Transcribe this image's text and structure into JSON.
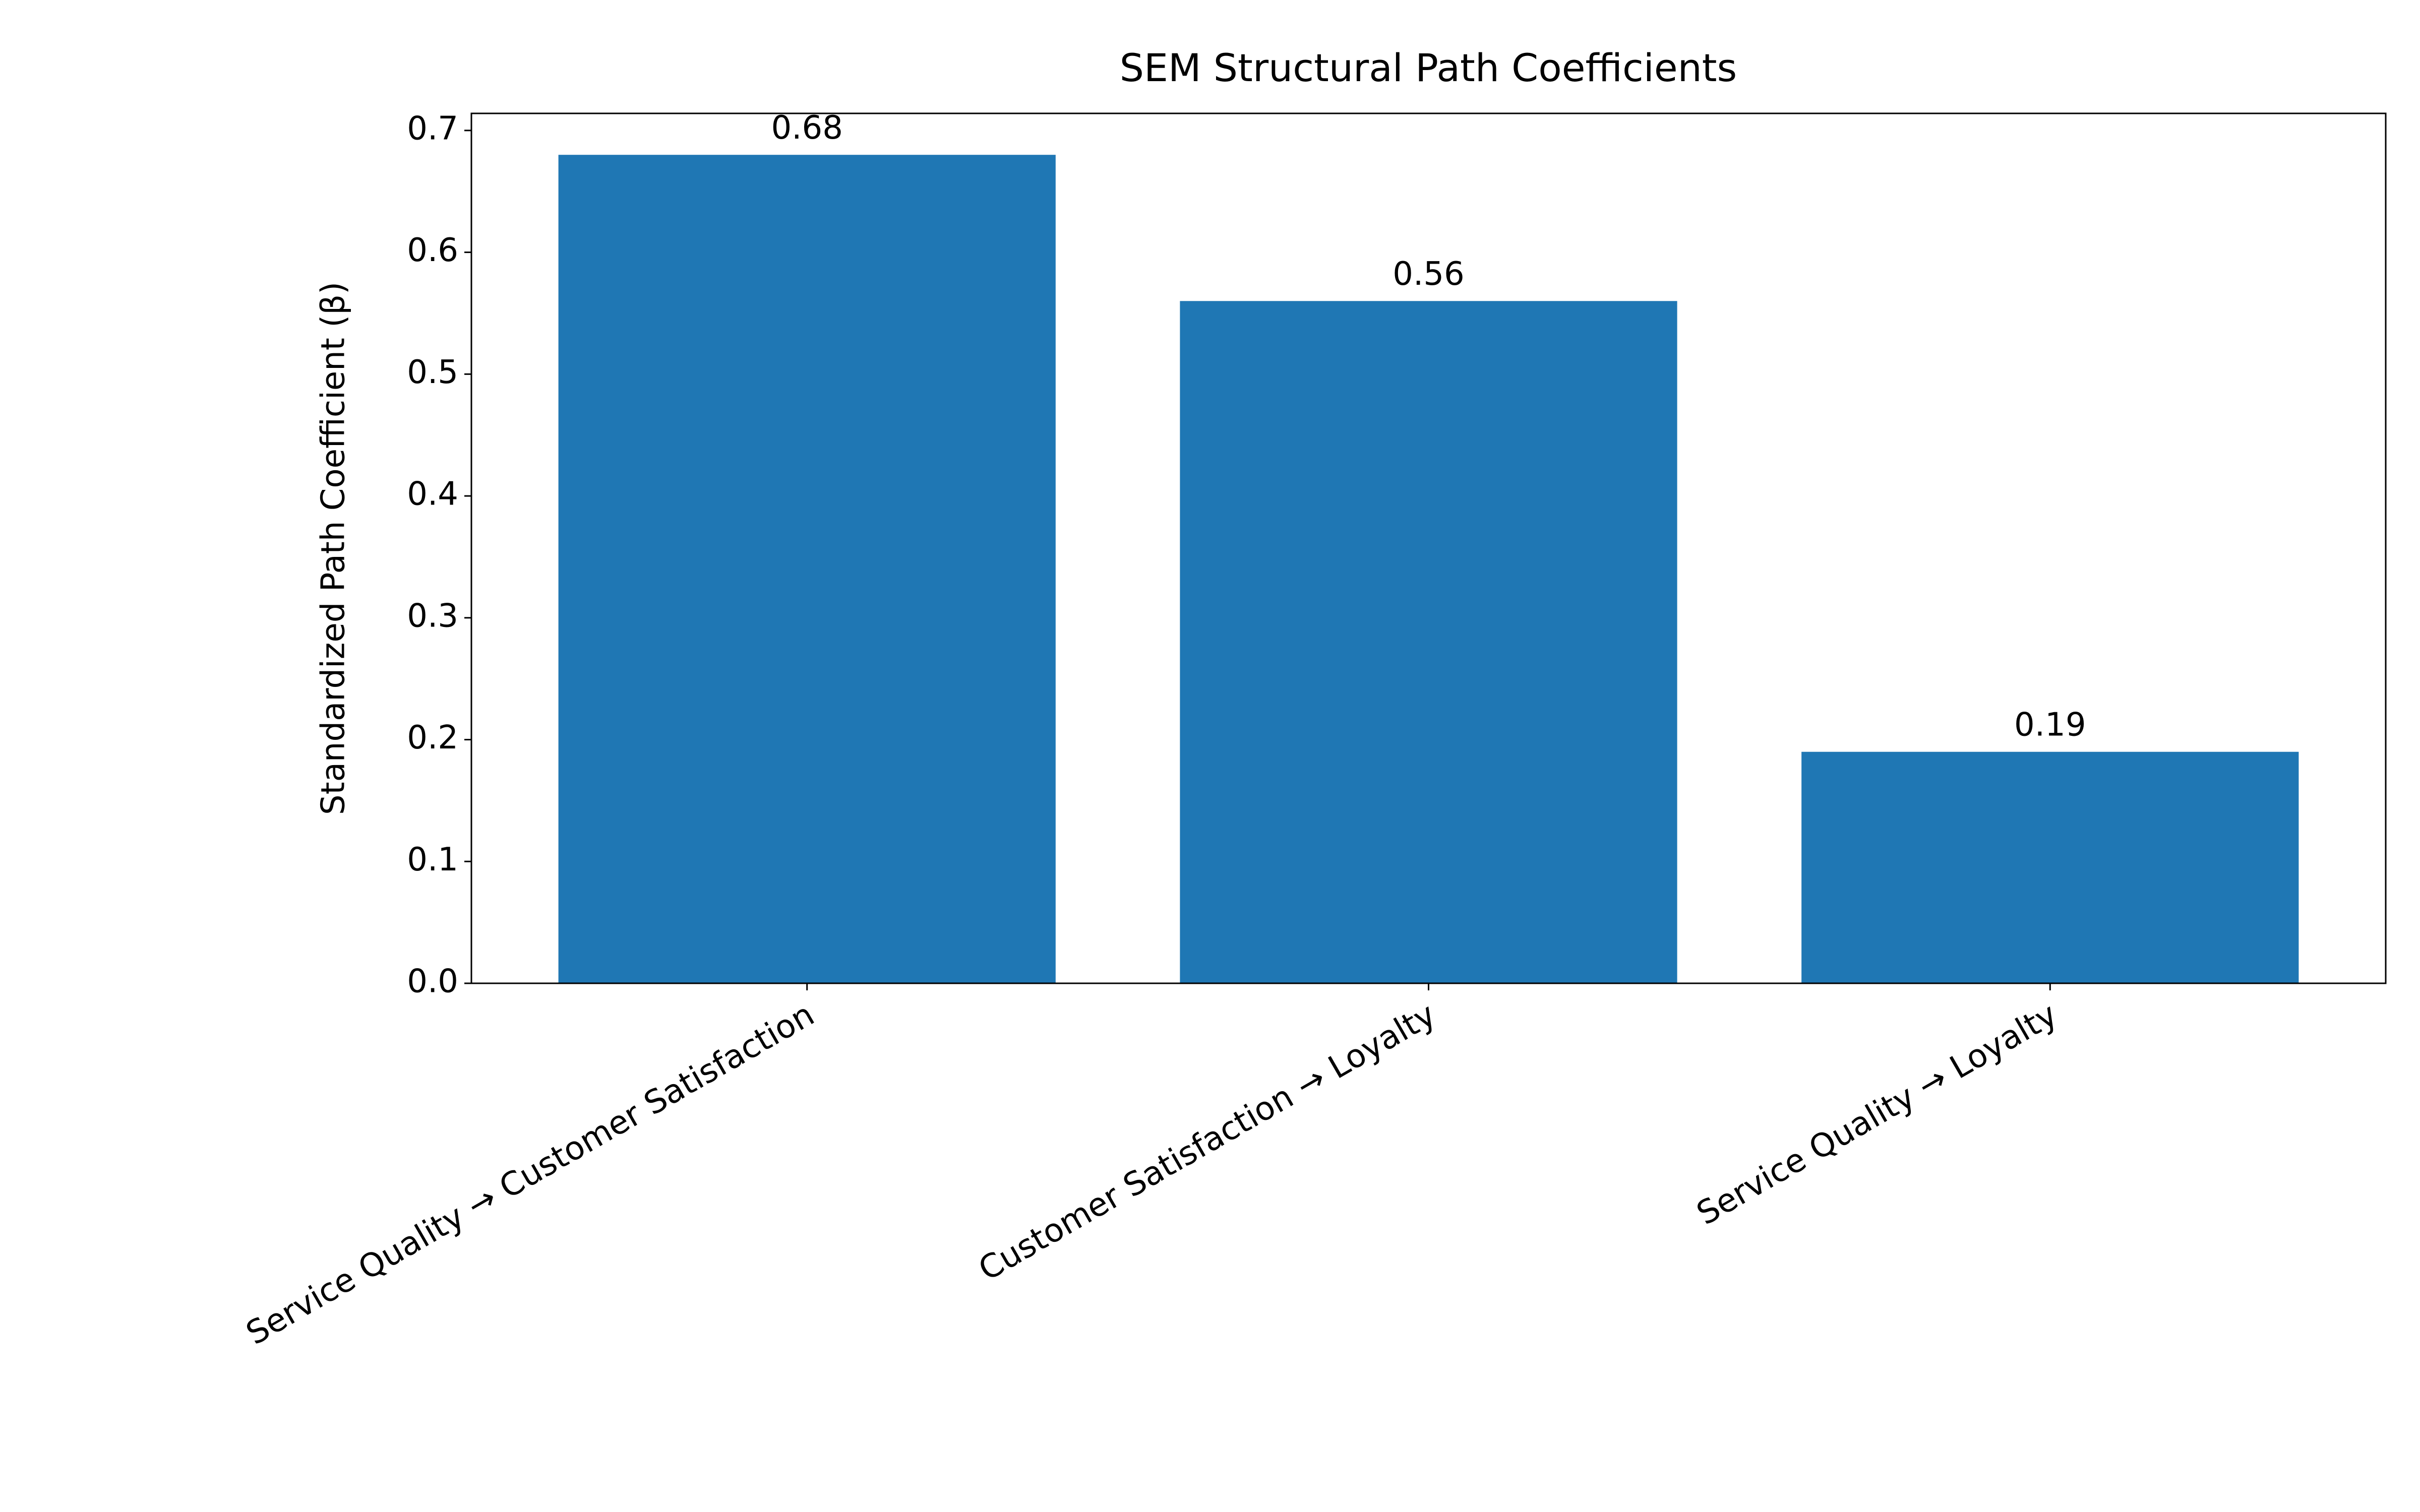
{
  "chart_data": {
    "type": "bar",
    "title": "SEM Structural Path Coefficients",
    "y_label": "Standardized Path Coefficient (β)",
    "categories": [
      "Service Quality → Customer Satisfaction",
      "Customer Satisfaction → Loyalty",
      "Service Quality → Loyalty"
    ],
    "values": [
      0.68,
      0.56,
      0.19
    ],
    "color": "#1f77b4",
    "ylim": [
      0,
      0.714
    ],
    "yticks": [
      {
        "value": 0,
        "label": "0.0"
      },
      0.1,
      0.2,
      0.3,
      0.4,
      0.5,
      0.6,
      0.7
    ],
    "grid": false
  }
}
